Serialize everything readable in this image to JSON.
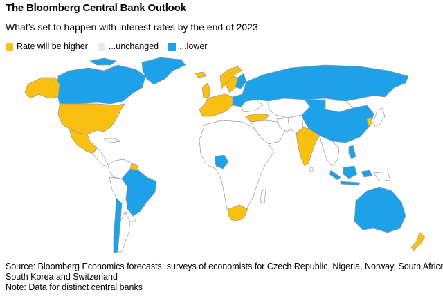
{
  "header": {
    "title": "The Bloomberg Central Bank Outlook",
    "subtitle": "What’s set to happen with interest rates by the end of 2023"
  },
  "legend": [
    {
      "label": "Rate will be higher",
      "color": "#F9BF11"
    },
    {
      "label": "...unchanged",
      "color": "#EBEBEB"
    },
    {
      "label": "...lower",
      "color": "#1DA1E8"
    }
  ],
  "colors": {
    "higher": "#F9BF11",
    "unchanged": "#FFFFFF",
    "lower": "#1DA1E8",
    "border": "#9A9A9A"
  },
  "footer": {
    "source_line1": "Source: Bloomberg Economics forecasts; surveys of economists for Czech Republic, Nigeria, Norway, South Africa,",
    "source_line2": "South Korea and Switzerland",
    "note": "Note: Data for distinct central banks"
  }
}
